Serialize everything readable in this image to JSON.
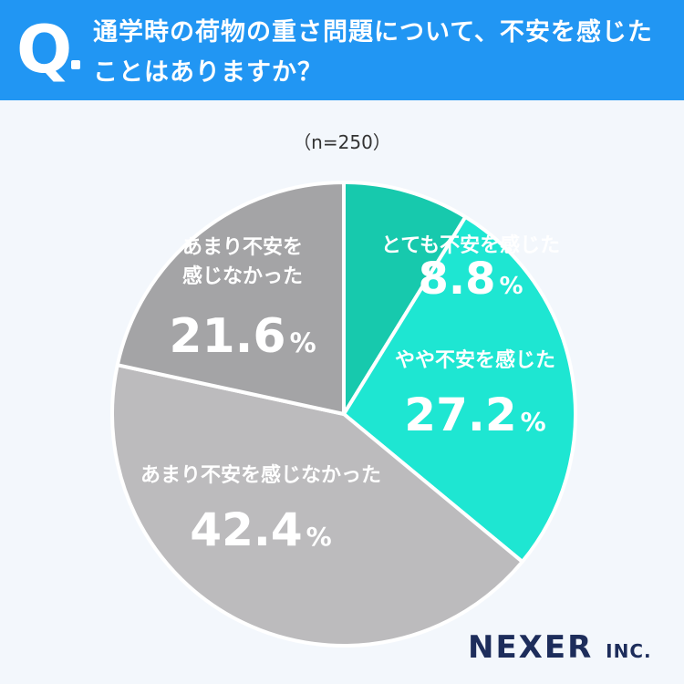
{
  "header": {
    "q_mark": "Q",
    "question": "通学時の荷物の重さ問題について、不安を感じたことはありますか？"
  },
  "sample_size": "（n=250）",
  "chart_data": {
    "type": "pie",
    "start_angle": "12 o'clock, clockwise",
    "slices": [
      {
        "label": "とても不安を感じた",
        "value": 8.8,
        "value_label": "8.8",
        "unit": "%",
        "color": "#17c9ad"
      },
      {
        "label": "やや不安を感じた",
        "value": 27.2,
        "value_label": "27.2",
        "unit": "%",
        "color": "#1ee6d2"
      },
      {
        "label": "あまり不安を感じなかった",
        "value": 42.4,
        "value_label": "42.4",
        "unit": "%",
        "color": "#bcbbbd"
      },
      {
        "label": "あまり不安を感じなかった",
        "value": 21.6,
        "value_label": "21.6",
        "unit": "%",
        "color": "#a4a4a6",
        "label_lines": [
          "あまり不安を",
          "感じなかった"
        ]
      }
    ]
  },
  "logo": {
    "name": "NEXER",
    "suffix": "INC."
  },
  "colors": {
    "header_bg": "#2196f3",
    "background": "#f3f7fc",
    "label_text": "#ffffff",
    "logo": "#1d2d5b"
  }
}
